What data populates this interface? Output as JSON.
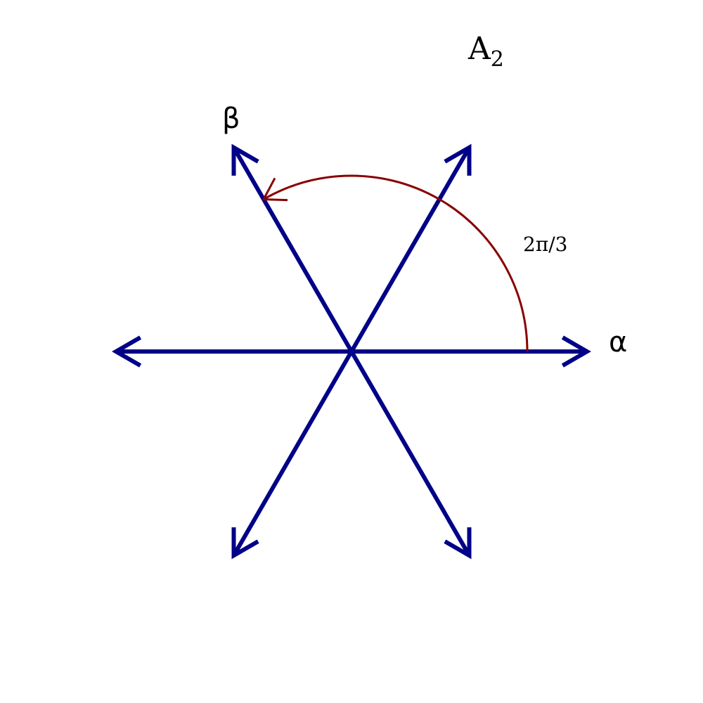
{
  "title": {
    "letter": "A",
    "subscript": "2"
  },
  "labels": {
    "alpha": "α",
    "beta": "β",
    "angle": "2π/3"
  },
  "roots": [
    {
      "name": "alpha",
      "angle_deg": 0
    },
    {
      "name": "alpha-plus-beta",
      "angle_deg": 60
    },
    {
      "name": "beta",
      "angle_deg": 120
    },
    {
      "name": "neg-alpha",
      "angle_deg": 180
    },
    {
      "name": "neg-alpha-plus-beta",
      "angle_deg": 240
    },
    {
      "name": "neg-beta",
      "angle_deg": 300
    }
  ],
  "angle_arc": {
    "from_deg": 0,
    "to_deg": 120
  },
  "colors": {
    "root_vector": "#000088",
    "angle_arc": "#880000",
    "text": "#000000"
  }
}
